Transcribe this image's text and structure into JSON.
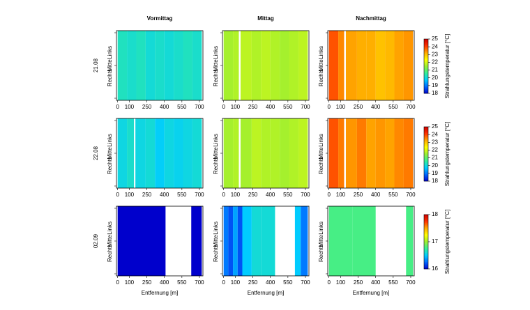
{
  "chart_data": {
    "type": "heatmap",
    "columns": [
      "Vormittag",
      "Mittag",
      "Nachmittag"
    ],
    "ylabels": [
      "Links",
      "Mitte",
      "Rechts"
    ],
    "xlabel": "Entfernung [m]",
    "colorbar_label": "Strahlungstemperatur [°C]",
    "xlim": [
      -10,
      730
    ],
    "xticks": [
      0,
      100,
      250,
      400,
      550,
      700
    ],
    "colormap": [
      "#0000cc",
      "#0066ff",
      "#00ccff",
      "#33ee99",
      "#99ee33",
      "#ffff00",
      "#ffaa00",
      "#ff3300",
      "#cc0000"
    ],
    "rows": [
      {
        "label": "21.08",
        "clim": [
          18,
          25
        ],
        "cticks": [
          18,
          19,
          20,
          21,
          22,
          23,
          24,
          25
        ],
        "panels": [
          {
            "bins": [
              0,
              80,
              160,
              240,
              320,
              400,
              480,
              560,
              640,
              720
            ],
            "values": [
              20.3,
              20.2,
              20.3,
              20.1,
              20.2,
              20.1,
              20.2,
              20.3,
              20.2
            ]
          },
          {
            "bins": [
              0,
              80,
              130,
              145,
              240,
              320,
              400,
              480,
              560,
              640,
              720
            ],
            "values": [
              21.6,
              21.7,
              null,
              21.8,
              21.7,
              21.8,
              21.7,
              21.6,
              21.7,
              21.8
            ]
          },
          {
            "bins": [
              0,
              80,
              130,
              145,
              240,
              320,
              400,
              480,
              560,
              640,
              720
            ],
            "values": [
              23.9,
              23.5,
              null,
              23.3,
              23.2,
              23.2,
              23.0,
              23.1,
              23.3,
              23.4
            ]
          }
        ]
      },
      {
        "label": "22.08",
        "clim": [
          18,
          25
        ],
        "cticks": [
          18,
          19,
          20,
          21,
          22,
          23,
          24,
          25
        ],
        "panels": [
          {
            "bins": [
              0,
              80,
              140,
              152,
              240,
              320,
              400,
              480,
              560,
              640,
              720
            ],
            "values": [
              20.0,
              20.2,
              null,
              20.0,
              20.1,
              19.8,
              20.0,
              19.9,
              20.0,
              20.1
            ]
          },
          {
            "bins": [
              0,
              80,
              130,
              145,
              240,
              320,
              400,
              480,
              560,
              640,
              720
            ],
            "values": [
              21.6,
              21.7,
              null,
              21.6,
              21.8,
              21.7,
              21.7,
              21.6,
              21.7,
              21.8
            ]
          },
          {
            "bins": [
              0,
              80,
              130,
              145,
              240,
              320,
              400,
              480,
              560,
              640,
              720
            ],
            "values": [
              23.9,
              23.6,
              null,
              23.4,
              23.6,
              23.3,
              23.4,
              23.3,
              23.5,
              23.6
            ]
          }
        ]
      },
      {
        "label": "02.09",
        "clim": [
          16,
          18
        ],
        "cticks": [
          16,
          17,
          18
        ],
        "panels": [
          {
            "bins": [
              0,
              410,
              630,
              720
            ],
            "values": [
              16.0,
              null,
              16.0
            ]
          },
          {
            "bins": [
              0,
              40,
              80,
              120,
              160,
              240,
              320,
              440,
              610,
              660,
              720
            ],
            "values": [
              16.3,
              16.2,
              16.4,
              16.2,
              16.5,
              16.6,
              16.6,
              null,
              16.5,
              16.3
            ]
          },
          {
            "bins": [
              0,
              200,
              400,
              660,
              720
            ],
            "values": [
              16.8,
              16.8,
              null,
              16.8
            ]
          }
        ]
      }
    ]
  }
}
